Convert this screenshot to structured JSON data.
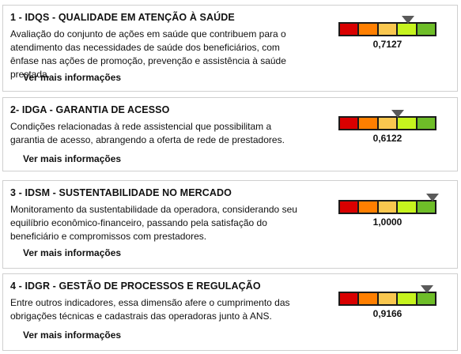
{
  "gauge_colors": [
    "#d90000",
    "#ff7f00",
    "#f9c74f",
    "#c6f31e",
    "#6ebd28"
  ],
  "indicators": [
    {
      "title": "1 - IDQS - QUALIDADE EM ATENÇÃO À SAÚDE",
      "description": "Avaliação do conjunto de ações em saúde que contribuem para o atendimento das necessidades de saúde dos beneficiários, com ênfase nas ações de promoção, prevenção e assistência à saúde prestada.",
      "link": "Ver mais informações",
      "value_label": "0,7127",
      "value": 0.7127
    },
    {
      "title": "2- IDGA - GARANTIA DE ACESSO",
      "description": "Condições relacionadas à rede assistencial que possibilitam a garantia de acesso, abrangendo a oferta de rede de prestadores.",
      "link": "Ver mais informações",
      "value_label": "0,6122",
      "value": 0.6122
    },
    {
      "title": "3 - IDSM - SUSTENTABILIDADE NO MERCADO",
      "description": "Monitoramento da sustentabilidade da operadora, considerando seu equilíbrio econômico-financeiro, passando pela satisfação do beneficiário e compromissos com prestadores.",
      "link": "Ver mais informações",
      "value_label": "1,0000",
      "value": 1.0
    },
    {
      "title": "4 - IDGR - GESTÃO DE PROCESSOS E REGULAÇÃO",
      "description": "Entre outros indicadores, essa dimensão afere o cumprimento das obrigações técnicas e cadastrais das operadoras junto à ANS.",
      "link": "Ver mais informações",
      "value_label": "0,9166",
      "value": 0.9166
    }
  ]
}
